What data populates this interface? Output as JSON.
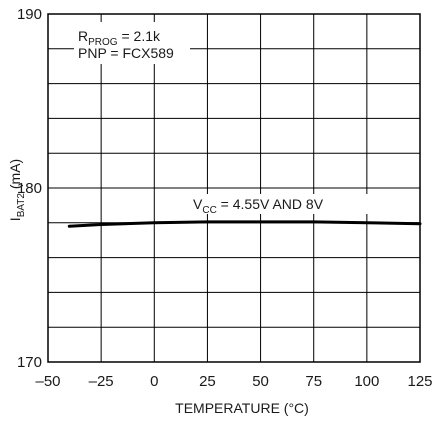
{
  "chart_data": {
    "type": "line",
    "x_axis": {
      "label": "TEMPERATURE (°C)",
      "range": [
        -50,
        125
      ],
      "ticks": [
        -50,
        -25,
        0,
        25,
        50,
        75,
        100,
        125
      ],
      "tick_labels": [
        "–50",
        "–25",
        "0",
        "25",
        "50",
        "75",
        "100",
        "125"
      ]
    },
    "y_axis": {
      "label_main": "I",
      "label_sub": "BAT2",
      "label_tail": " (mA)",
      "range": [
        170,
        190
      ],
      "gridlines": [
        170,
        172,
        174,
        176,
        178,
        180,
        182,
        184,
        186,
        188,
        190
      ],
      "tick_values": [
        170,
        180,
        190
      ],
      "tick_labels": [
        "170",
        "180",
        "190"
      ]
    },
    "grid": true,
    "series": [
      {
        "x": [
          -40,
          -25,
          0,
          25,
          50,
          75,
          100,
          125
        ],
        "y": [
          177.8,
          177.9,
          178.0,
          178.05,
          178.05,
          178.05,
          178.0,
          177.95
        ]
      }
    ],
    "annotations": {
      "rprog": {
        "main": "R",
        "sub": "PROG",
        "tail": " = 2.1k"
      },
      "pnp": {
        "text": "PNP = FCX589"
      },
      "vcc": {
        "main": "V",
        "sub": "CC",
        "tail": " = 4.55V AND 8V"
      }
    },
    "colors": {
      "line": "#000000",
      "grid": "#000000",
      "background": "#ffffff"
    }
  }
}
